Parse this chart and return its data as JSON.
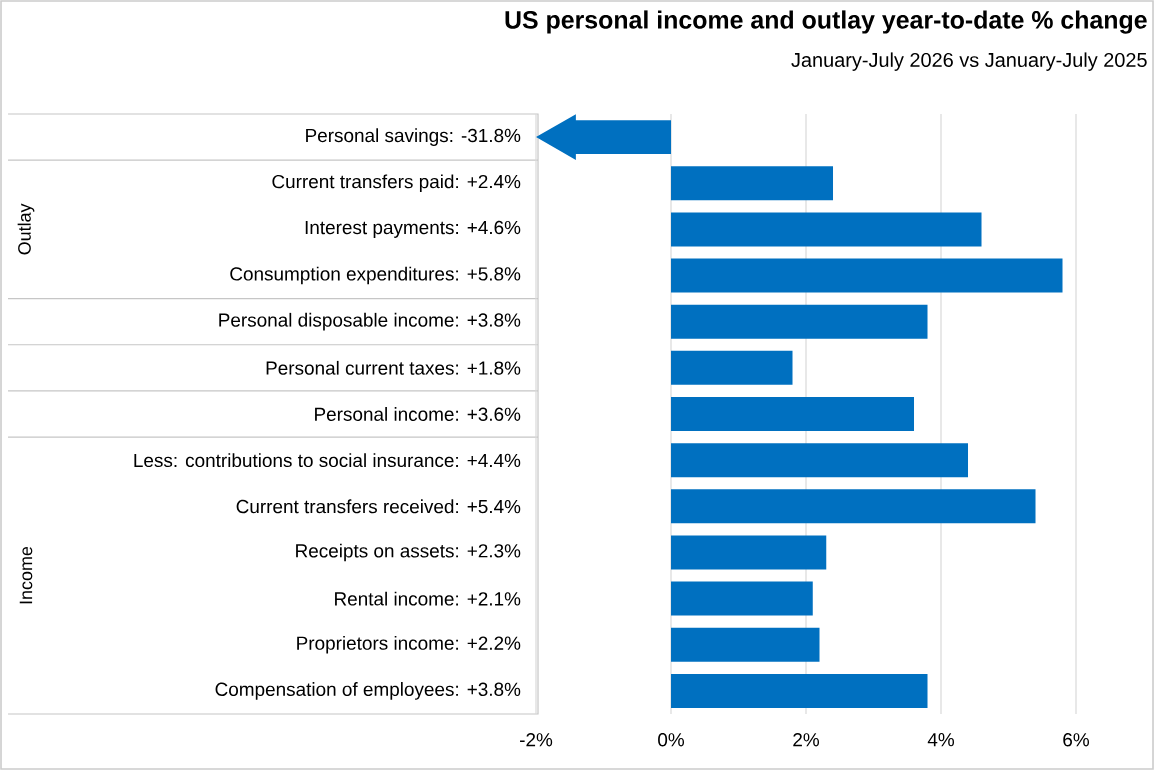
{
  "chart_data": {
    "type": "bar",
    "orientation": "horizontal",
    "title": "US personal  income and outlay year-to-date % change",
    "subtitle": "January-July 2026 vs January-July 2025",
    "categories": [
      "Personal savings:  -31.8%",
      "Current transfers paid:  +2.4%",
      "Interest payments:  +4.6%",
      "Consumption expenditures:  +5.8%",
      "Personal disposable income:  +3.8%",
      "Personal current taxes:  +1.8%",
      "Personal income:  +3.6%",
      "Less: contributions to social insurance:  +4.4%",
      "Current transfers received:  +5.4%",
      "Receipts on assets:  +2.3%",
      "Rental income:  +2.1%",
      "Proprietors income:  +2.2%",
      "Compensation of employees:  +3.8%"
    ],
    "values": [
      null,
      2.4,
      4.6,
      5.8,
      3.8,
      1.8,
      3.6,
      4.4,
      5.4,
      2.3,
      2.1,
      2.2,
      3.8
    ],
    "color": "#0070c0",
    "xlim": [
      -2,
      6
    ],
    "xticks": [
      {
        "value": -2,
        "label": "-2%"
      },
      {
        "value": 0,
        "label": "0%"
      },
      {
        "value": 2,
        "label": "2%"
      },
      {
        "value": 4,
        "label": "4%"
      },
      {
        "value": 6,
        "label": "6%"
      }
    ],
    "grid": "x",
    "annotations": [
      "Outlay",
      "Income"
    ]
  }
}
